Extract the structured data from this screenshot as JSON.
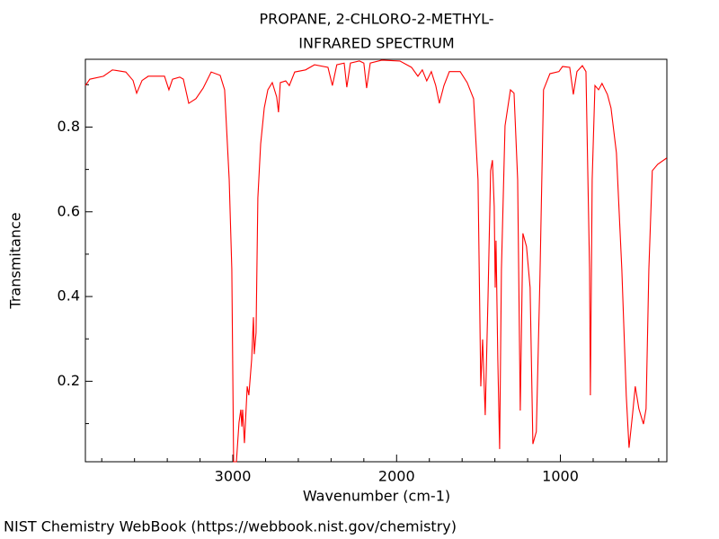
{
  "chart_data": {
    "type": "line",
    "title": "PROPANE, 2-CHLORO-2-METHYL-",
    "subtitle": "INFRARED SPECTRUM",
    "x_label": "Wavenumber (cm-1)",
    "y_label": "Transmitance",
    "footer": "NIST Chemistry WebBook (https://webbook.nist.gov/chemistry)",
    "xlim": [
      3900,
      350
    ],
    "ylim": [
      0.01,
      0.96
    ],
    "xticks": [
      3000,
      2000,
      1000
    ],
    "yticks": [
      0.2,
      0.4,
      0.6,
      0.8
    ],
    "xminorticks": [
      3800,
      3600,
      3400,
      3200,
      2800,
      2600,
      2400,
      2200,
      1800,
      1600,
      1400,
      1200,
      800,
      600,
      400
    ],
    "yminorticks": [
      0.1,
      0.3,
      0.5,
      0.7,
      0.9
    ],
    "grid": false,
    "x": [
      3900,
      3873,
      3790,
      3735,
      3653,
      3609,
      3587,
      3554,
      3516,
      3417,
      3390,
      3368,
      3324,
      3302,
      3269,
      3225,
      3181,
      3132,
      3077,
      3050,
      3022,
      3006,
      2995,
      2978,
      2962,
      2951,
      2945,
      2940,
      2929,
      2912,
      2902,
      2885,
      2874,
      2869,
      2858,
      2847,
      2830,
      2808,
      2786,
      2759,
      2732,
      2721,
      2710,
      2677,
      2655,
      2622,
      2556,
      2501,
      2419,
      2392,
      2365,
      2320,
      2304,
      2282,
      2227,
      2200,
      2183,
      2161,
      2090,
      1980,
      1909,
      1870,
      1843,
      1816,
      1788,
      1761,
      1739,
      1711,
      1678,
      1612,
      1569,
      1530,
      1503,
      1486,
      1475,
      1459,
      1442,
      1426,
      1415,
      1404,
      1398,
      1393,
      1382,
      1371,
      1360,
      1338,
      1305,
      1283,
      1261,
      1245,
      1229,
      1207,
      1185,
      1168,
      1147,
      1125,
      1103,
      1064,
      1009,
      987,
      943,
      921,
      899,
      866,
      844,
      822,
      817,
      806,
      789,
      767,
      746,
      713,
      691,
      658,
      625,
      598,
      581,
      559,
      543,
      521,
      493,
      477,
      460,
      439,
      406,
      351
    ],
    "series": [
      {
        "color": "#ff0000",
        "values": [
          0.898,
          0.913,
          0.92,
          0.935,
          0.93,
          0.91,
          0.88,
          0.91,
          0.92,
          0.92,
          0.888,
          0.913,
          0.918,
          0.913,
          0.856,
          0.867,
          0.892,
          0.93,
          0.922,
          0.888,
          0.676,
          0.464,
          0.01,
          0.01,
          0.103,
          0.133,
          0.093,
          0.133,
          0.054,
          0.188,
          0.167,
          0.251,
          0.351,
          0.264,
          0.315,
          0.633,
          0.76,
          0.845,
          0.888,
          0.905,
          0.871,
          0.835,
          0.905,
          0.909,
          0.898,
          0.93,
          0.935,
          0.947,
          0.941,
          0.898,
          0.947,
          0.951,
          0.894,
          0.951,
          0.956,
          0.951,
          0.892,
          0.951,
          0.958,
          0.956,
          0.941,
          0.92,
          0.935,
          0.909,
          0.931,
          0.898,
          0.856,
          0.898,
          0.931,
          0.931,
          0.905,
          0.867,
          0.676,
          0.188,
          0.299,
          0.12,
          0.397,
          0.697,
          0.722,
          0.612,
          0.421,
          0.532,
          0.251,
          0.04,
          0.464,
          0.803,
          0.888,
          0.88,
          0.676,
          0.131,
          0.549,
          0.518,
          0.421,
          0.052,
          0.081,
          0.442,
          0.888,
          0.926,
          0.931,
          0.943,
          0.941,
          0.877,
          0.931,
          0.945,
          0.931,
          0.464,
          0.167,
          0.676,
          0.898,
          0.888,
          0.903,
          0.877,
          0.845,
          0.739,
          0.464,
          0.167,
          0.043,
          0.124,
          0.188,
          0.135,
          0.099,
          0.135,
          0.464,
          0.697,
          0.712,
          0.727
        ]
      }
    ]
  }
}
